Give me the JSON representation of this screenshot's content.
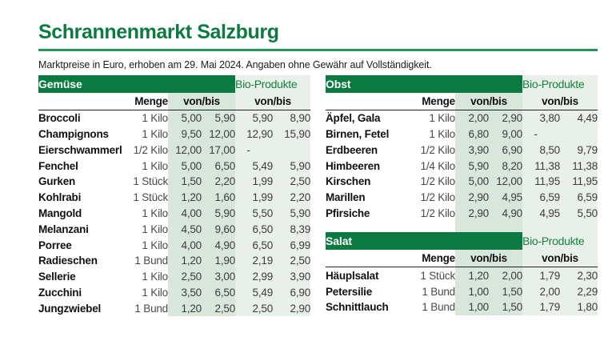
{
  "page": {
    "title": "Schrannenmarkt Salzburg",
    "subtitle": "Marktpreise in Euro, erhoben am 29. Mai 2024. Angaben ohne Gewähr auf Vollständigkeit."
  },
  "labels": {
    "bio": "Bio-Produkte",
    "menge": "Menge",
    "vonbis": "von/bis"
  },
  "colors": {
    "header_green": "#0a7a40",
    "title_green": "#0c7a41",
    "rule_green": "#28935a",
    "bio_text_green": "#15813f",
    "vonbis_band_bg": "#d9e6dc",
    "bio_band_bg": "#e8f0e9"
  },
  "tables": [
    {
      "id": "gemuese",
      "title": "Gemüse",
      "rows": [
        {
          "name": "Broccoli",
          "menge": "1 Kilo",
          "von": "5,00",
          "bis": "5,90",
          "bio_von": "5,90",
          "bio_bis": "8,90"
        },
        {
          "name": "Champignons",
          "menge": "1 Kilo",
          "von": "9,50",
          "bis": "12,00",
          "bio_von": "12,90",
          "bio_bis": "15,90"
        },
        {
          "name": "Eierschwammerl",
          "menge": "1/2 Kilo",
          "von": "12,00",
          "bis": "17,00",
          "bio_von": "-",
          "bio_bis": ""
        },
        {
          "name": "Fenchel",
          "menge": "1 Kilo",
          "von": "5,00",
          "bis": "6,50",
          "bio_von": "5,49",
          "bio_bis": "5,90"
        },
        {
          "name": "Gurken",
          "menge": "1 Stück",
          "von": "1,50",
          "bis": "2,20",
          "bio_von": "1,99",
          "bio_bis": "2,50"
        },
        {
          "name": "Kohlrabi",
          "menge": "1 Stück",
          "von": "1,20",
          "bis": "1,60",
          "bio_von": "1,99",
          "bio_bis": "2,20"
        },
        {
          "name": "Mangold",
          "menge": "1 Kilo",
          "von": "4,00",
          "bis": "5,90",
          "bio_von": "5,50",
          "bio_bis": "5,90"
        },
        {
          "name": "Melanzani",
          "menge": "1 Kilo",
          "von": "4,50",
          "bis": "9,60",
          "bio_von": "6,50",
          "bio_bis": "8,39"
        },
        {
          "name": "Porree",
          "menge": "1 Kilo",
          "von": "4,00",
          "bis": "4,90",
          "bio_von": "6,50",
          "bio_bis": "6,99"
        },
        {
          "name": "Radieschen",
          "menge": "1 Bund",
          "von": "1,20",
          "bis": "1,90",
          "bio_von": "2,19",
          "bio_bis": "2,50"
        },
        {
          "name": "Sellerie",
          "menge": "1 Kilo",
          "von": "2,50",
          "bis": "3,00",
          "bio_von": "2,99",
          "bio_bis": "3,90"
        },
        {
          "name": "Zucchini",
          "menge": "1 Kilo",
          "von": "3,50",
          "bis": "6,50",
          "bio_von": "5,49",
          "bio_bis": "6,90"
        },
        {
          "name": "Jungzwiebel",
          "menge": "1 Bund",
          "von": "1,20",
          "bis": "2,50",
          "bio_von": "2,50",
          "bio_bis": "2,90"
        }
      ]
    },
    {
      "id": "obst",
      "title": "Obst",
      "rows": [
        {
          "name": "Äpfel, Gala",
          "menge": "1 Kilo",
          "von": "2,00",
          "bis": "2,90",
          "bio_von": "3,80",
          "bio_bis": "4,49"
        },
        {
          "name": "Birnen, Fetel",
          "menge": "1 Kilo",
          "von": "6,80",
          "bis": "9,00",
          "bio_von": "-",
          "bio_bis": ""
        },
        {
          "name": "Erdbeeren",
          "menge": "1/2 Kilo",
          "von": "3,90",
          "bis": "6,90",
          "bio_von": "8,50",
          "bio_bis": "9,79"
        },
        {
          "name": "Himbeeren",
          "menge": "1/4 Kilo",
          "von": "5,90",
          "bis": "8,20",
          "bio_von": "11,38",
          "bio_bis": "11,38"
        },
        {
          "name": "Kirschen",
          "menge": "1/2 Kilo",
          "von": "5,00",
          "bis": "12,00",
          "bio_von": "11,95",
          "bio_bis": "11,95"
        },
        {
          "name": "Marillen",
          "menge": "1/2 Kilo",
          "von": "2,90",
          "bis": "4,95",
          "bio_von": "6,59",
          "bio_bis": "6,59"
        },
        {
          "name": "Pfirsiche",
          "menge": "1/2 Kilo",
          "von": "2,90",
          "bis": "4,90",
          "bio_von": "4,95",
          "bio_bis": "5,50"
        }
      ]
    },
    {
      "id": "salat",
      "title": "Salat",
      "rows": [
        {
          "name": "Häuplsalat",
          "menge": "1 Stück",
          "von": "1,20",
          "bis": "2,00",
          "bio_von": "1,79",
          "bio_bis": "2,30"
        },
        {
          "name": "Petersilie",
          "menge": "1 Bund",
          "von": "1,00",
          "bis": "1,50",
          "bio_von": "2,00",
          "bio_bis": "2,29"
        },
        {
          "name": "Schnittlauch",
          "menge": "1 Bund",
          "von": "1,00",
          "bis": "1,50",
          "bio_von": "1,79",
          "bio_bis": "1,80"
        }
      ]
    }
  ]
}
